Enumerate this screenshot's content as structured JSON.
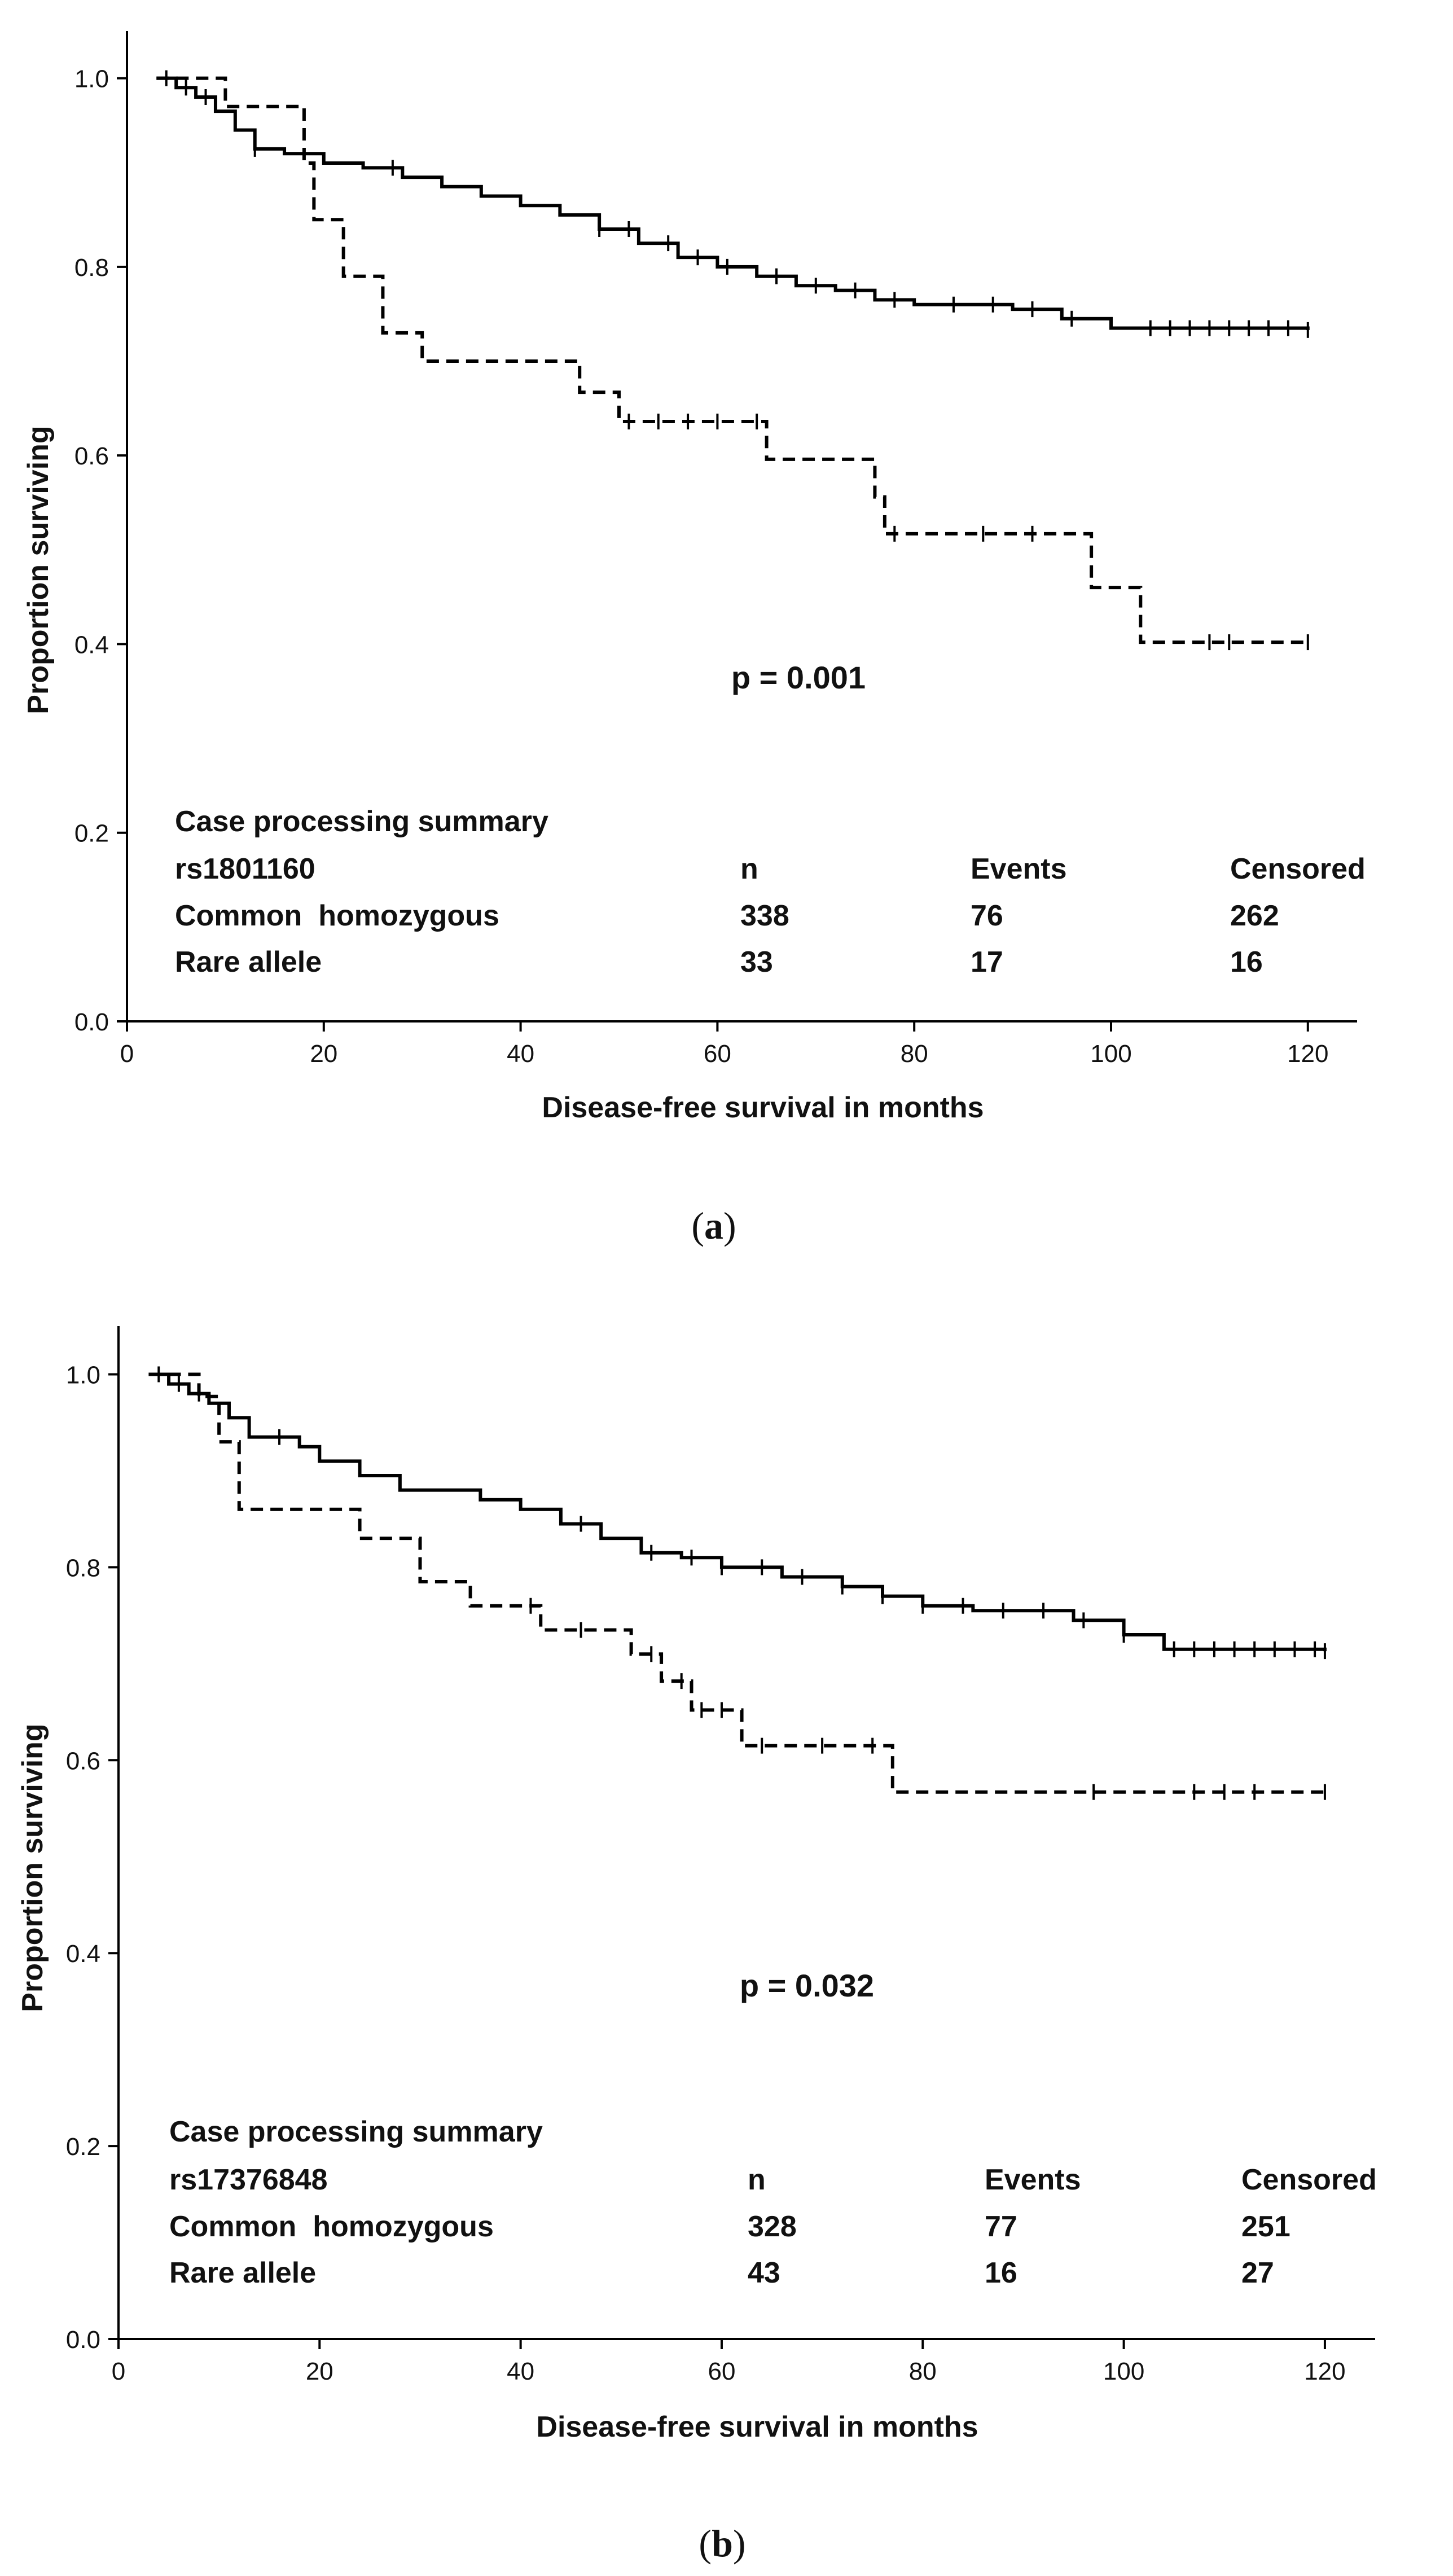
{
  "chart_data": [
    {
      "type": "line",
      "subtype": "kaplan-meier",
      "panel_label": "a",
      "title": "",
      "xlabel": "Disease-free survival in months",
      "ylabel": "Proportion surviving",
      "xlim": [
        0,
        125
      ],
      "ylim": [
        0,
        1.05
      ],
      "xticks": [
        0,
        20,
        40,
        60,
        80,
        100,
        120
      ],
      "yticks": [
        "0.0",
        "0.2",
        "0.4",
        "0.6",
        "0.8",
        "1.0"
      ],
      "grid": false,
      "annotation": "p = 0.001",
      "series": [
        {
          "name": "Common homozygous",
          "style": "solid",
          "steps": [
            [
              3,
              1.0
            ],
            [
              5,
              0.99
            ],
            [
              7,
              0.98
            ],
            [
              9,
              0.965
            ],
            [
              11,
              0.945
            ],
            [
              13,
              0.925
            ],
            [
              16,
              0.92
            ],
            [
              20,
              0.91
            ],
            [
              24,
              0.905
            ],
            [
              28,
              0.895
            ],
            [
              32,
              0.885
            ],
            [
              36,
              0.875
            ],
            [
              40,
              0.865
            ],
            [
              44,
              0.855
            ],
            [
              48,
              0.84
            ],
            [
              52,
              0.825
            ],
            [
              56,
              0.81
            ],
            [
              60,
              0.8
            ],
            [
              64,
              0.79
            ],
            [
              68,
              0.78
            ],
            [
              72,
              0.775
            ],
            [
              76,
              0.765
            ],
            [
              80,
              0.76
            ],
            [
              90,
              0.755
            ],
            [
              95,
              0.745
            ],
            [
              100,
              0.735
            ],
            [
              120,
              0.733
            ]
          ],
          "censored": [
            4,
            6,
            8,
            13,
            27,
            48,
            51,
            55,
            58,
            61,
            66,
            70,
            74,
            78,
            84,
            88,
            92,
            96,
            104,
            106,
            108,
            110,
            112,
            114,
            116,
            118,
            120
          ]
        },
        {
          "name": "Rare allele",
          "style": "dashed",
          "steps": [
            [
              3,
              1.0
            ],
            [
              10,
              0.97
            ],
            [
              18,
              0.91
            ],
            [
              19,
              0.85
            ],
            [
              22,
              0.79
            ],
            [
              26,
              0.73
            ],
            [
              30,
              0.7
            ],
            [
              46,
              0.667
            ],
            [
              50,
              0.636
            ],
            [
              65,
              0.596
            ],
            [
              76,
              0.556
            ],
            [
              77,
              0.517
            ],
            [
              98,
              0.46
            ],
            [
              103,
              0.402
            ],
            [
              120,
              0.402
            ]
          ],
          "censored": [
            51,
            54,
            57,
            60,
            64,
            78,
            87,
            92,
            110,
            112,
            120
          ]
        }
      ],
      "table": {
        "title": "Case processing summary",
        "header": [
          "rs1801160",
          "n",
          "Events",
          "Censored"
        ],
        "rows": [
          [
            "Common  homozygous",
            "338",
            "76",
            "262"
          ],
          [
            "Rare allele",
            "33",
            "17",
            "16"
          ]
        ]
      }
    },
    {
      "type": "line",
      "subtype": "kaplan-meier",
      "panel_label": "b",
      "title": "",
      "xlabel": "Disease-free survival in months",
      "ylabel": "Proportion surviving",
      "xlim": [
        0,
        125
      ],
      "ylim": [
        0,
        1.05
      ],
      "xticks": [
        0,
        20,
        40,
        60,
        80,
        100,
        120
      ],
      "yticks": [
        "0.0",
        "0.2",
        "0.4",
        "0.6",
        "0.8",
        "1.0"
      ],
      "grid": false,
      "annotation": "p = 0.032",
      "series": [
        {
          "name": "Common homozygous",
          "style": "solid",
          "steps": [
            [
              3,
              1.0
            ],
            [
              5,
              0.99
            ],
            [
              7,
              0.98
            ],
            [
              9,
              0.97
            ],
            [
              11,
              0.955
            ],
            [
              13,
              0.935
            ],
            [
              18,
              0.925
            ],
            [
              20,
              0.91
            ],
            [
              24,
              0.895
            ],
            [
              28,
              0.88
            ],
            [
              36,
              0.87
            ],
            [
              40,
              0.86
            ],
            [
              44,
              0.845
            ],
            [
              48,
              0.83
            ],
            [
              52,
              0.815
            ],
            [
              56,
              0.81
            ],
            [
              60,
              0.8
            ],
            [
              66,
              0.79
            ],
            [
              72,
              0.78
            ],
            [
              76,
              0.77
            ],
            [
              80,
              0.76
            ],
            [
              85,
              0.755
            ],
            [
              95,
              0.745
            ],
            [
              100,
              0.73
            ],
            [
              104,
              0.715
            ],
            [
              120,
              0.713
            ]
          ],
          "censored": [
            4,
            6,
            8,
            16,
            46,
            53,
            57,
            60,
            64,
            68,
            72,
            76,
            80,
            84,
            88,
            92,
            96,
            100,
            105,
            107,
            109,
            111,
            113,
            115,
            117,
            119,
            120
          ]
        },
        {
          "name": "Rare allele",
          "style": "dashed",
          "steps": [
            [
              3,
              1.0
            ],
            [
              8,
              0.977
            ],
            [
              10,
              0.93
            ],
            [
              12,
              0.86
            ],
            [
              24,
              0.83
            ],
            [
              30,
              0.785
            ],
            [
              35,
              0.76
            ],
            [
              42,
              0.735
            ],
            [
              51,
              0.71
            ],
            [
              54,
              0.682
            ],
            [
              57,
              0.652
            ],
            [
              62,
              0.615
            ],
            [
              77,
              0.567
            ],
            [
              120,
              0.567
            ]
          ],
          "censored": [
            41,
            46,
            53,
            56,
            58,
            60,
            64,
            70,
            75,
            97,
            107,
            110,
            113,
            120
          ]
        }
      ],
      "table": {
        "title": "Case processing summary",
        "header": [
          "rs17376848",
          "n",
          "Events",
          "Censored"
        ],
        "rows": [
          [
            "Common  homozygous",
            "328",
            "77",
            "251"
          ],
          [
            "Rare allele",
            "43",
            "16",
            "27"
          ]
        ]
      }
    }
  ]
}
